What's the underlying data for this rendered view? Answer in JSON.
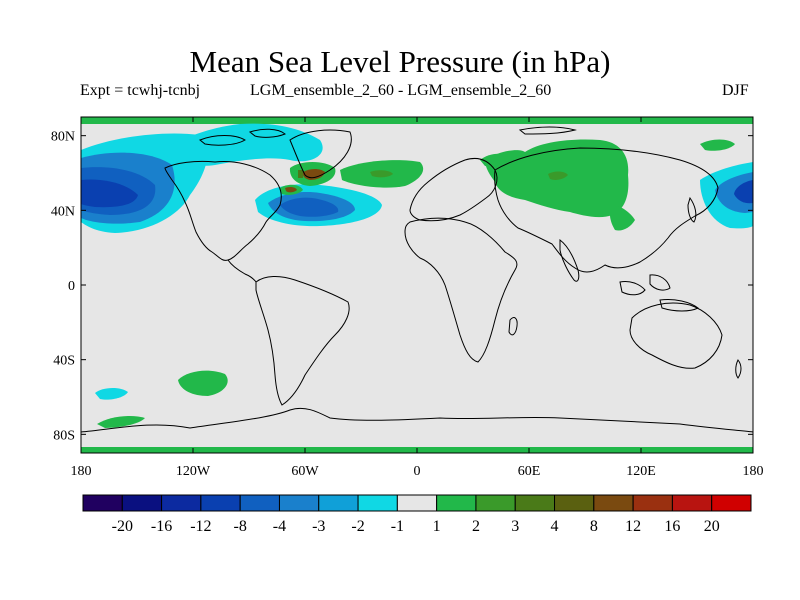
{
  "title": "Mean Sea Level Pressure (in hPa)",
  "subtitle_left": "Expt = tcwhj-tcnbj",
  "subtitle_center": "LGM_ensemble_2_60 - LGM_ensemble_2_60",
  "subtitle_right": "DJF",
  "map": {
    "projection": "equirectangular",
    "lon_range": [
      -180,
      180
    ],
    "lat_range": [
      -90,
      90
    ],
    "background_color": "#e6e6e6",
    "coastline_color": "#000000",
    "x_ticks": [
      {
        "value": -180,
        "label": "180"
      },
      {
        "value": -120,
        "label": "120W"
      },
      {
        "value": -60,
        "label": "60W"
      },
      {
        "value": 0,
        "label": "0"
      },
      {
        "value": 60,
        "label": "60E"
      },
      {
        "value": 120,
        "label": "120E"
      },
      {
        "value": 180,
        "label": "180"
      }
    ],
    "y_ticks": [
      {
        "value": 80,
        "label": "80N"
      },
      {
        "value": 40,
        "label": "40N"
      },
      {
        "value": 0,
        "label": "0"
      },
      {
        "value": -40,
        "label": "40S"
      },
      {
        "value": -80,
        "label": "80S"
      }
    ]
  },
  "colorbar": {
    "colors": [
      "#200060",
      "#0a1080",
      "#0c2aa0",
      "#0a40b0",
      "#1060c0",
      "#1a80cc",
      "#10a0d8",
      "#10d8e4",
      "#e6e6e6",
      "#22b84a",
      "#3a9a2a",
      "#4a7a18",
      "#5a6010",
      "#7a4a10",
      "#9a3010",
      "#b81410",
      "#d00000"
    ],
    "labels": [
      "-20",
      "-16",
      "-12",
      "-8",
      "-4",
      "-3",
      "-2",
      "-1",
      "1",
      "2",
      "3",
      "4",
      "8",
      "12",
      "16",
      "20"
    ]
  }
}
